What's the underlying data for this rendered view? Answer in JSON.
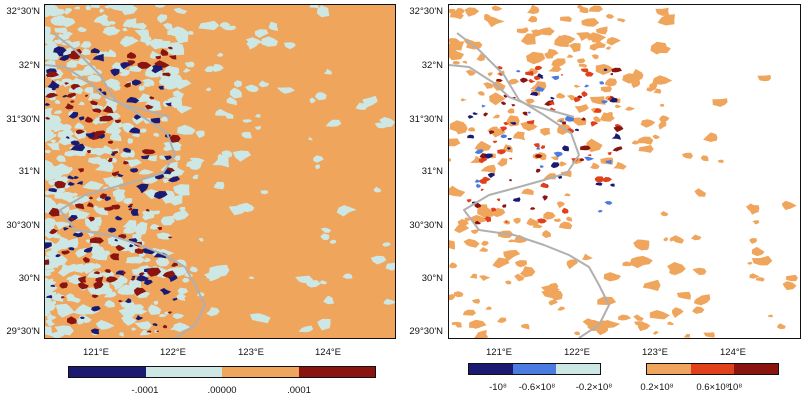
{
  "left_panel": {
    "lat_labels": [
      "32°30'N",
      "32°N",
      "31°30'N",
      "31°N",
      "30°30'N",
      "30°N",
      "29°30'N"
    ],
    "lon_labels": [
      "121°E",
      "122°E",
      "123°E",
      "124°E"
    ],
    "colorbar": {
      "colors": [
        "#1a1a73",
        "#cde8e4",
        "#f0a55c",
        "#8a1410"
      ],
      "labels": [
        "-.0001",
        ".00000",
        ".0001"
      ]
    }
  },
  "right_panel": {
    "lat_labels": [
      "32°30'N",
      "32°N",
      "31°30'N",
      "31°N",
      "30°30'N",
      "30°N",
      "29°30'N"
    ],
    "lon_labels": [
      "121°E",
      "122°E",
      "123°E",
      "124°E"
    ],
    "colorbar_neg": {
      "colors": [
        "#1a1a73",
        "#4a7be0",
        "#cde8e4"
      ],
      "labels": [
        "-10⁸",
        "-0.6×10⁸",
        "-0.2×10⁸"
      ]
    },
    "colorbar_pos": {
      "colors": [
        "#f0a55c",
        "#e0401a",
        "#8a1410"
      ],
      "labels": [
        "0.2×10⁸",
        "0.6×10⁸",
        "10⁸"
      ]
    }
  },
  "colors": {
    "orange": "#f0a55c",
    "light_blue": "#cde8e4",
    "dark_red": "#8a1410",
    "navy": "#1a1a73",
    "coast": "#b0b0b0"
  }
}
